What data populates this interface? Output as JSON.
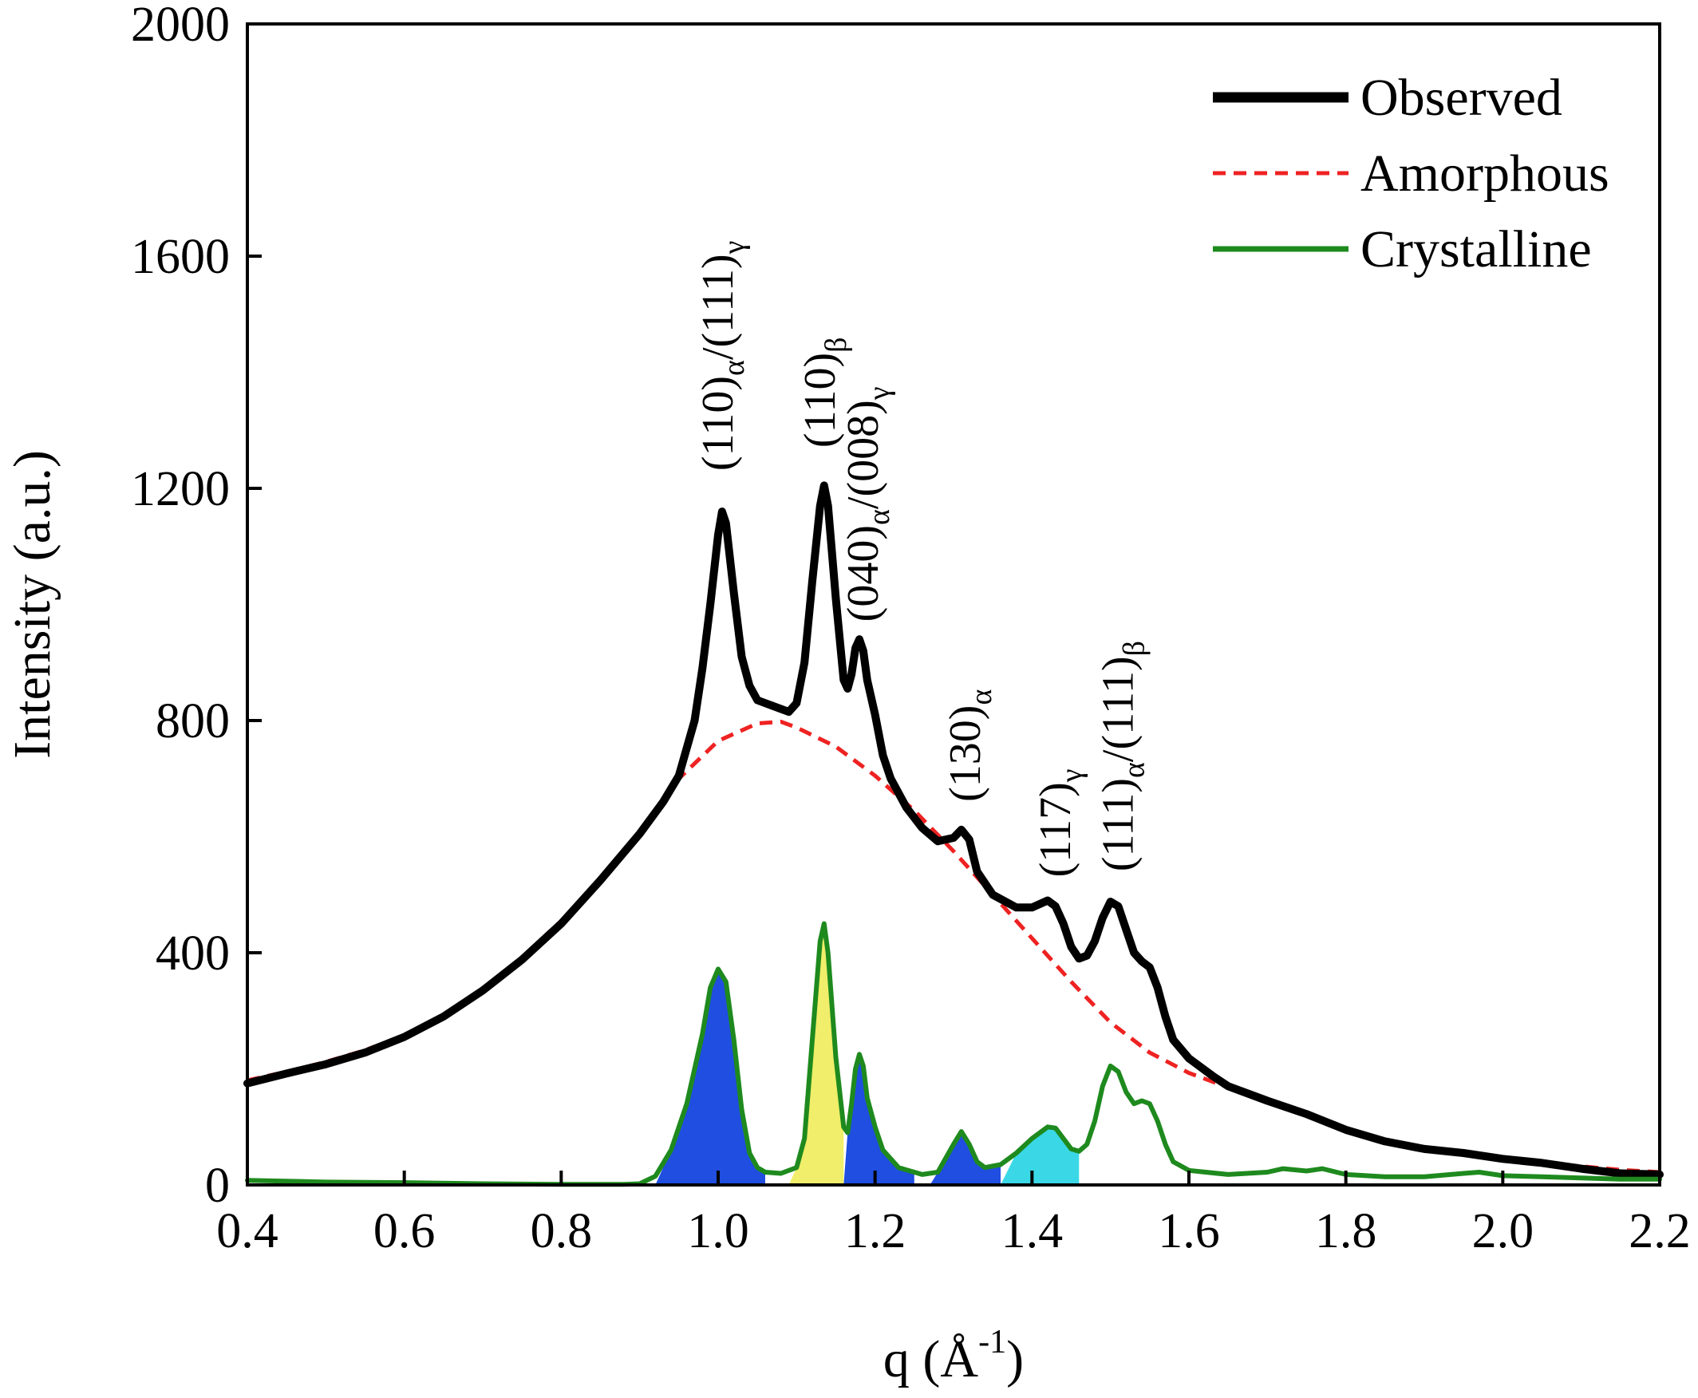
{
  "chart_data": {
    "type": "line",
    "xlabel": "q (Å",
    "xlabel_sup": "-1",
    "xlabel_close": ")",
    "ylabel": "Intensity (a.u.)",
    "xlim": [
      0.4,
      2.2
    ],
    "ylim": [
      0,
      2000
    ],
    "x_ticks": [
      "0.4",
      "0.6",
      "0.8",
      "1.0",
      "1.2",
      "1.4",
      "1.6",
      "1.8",
      "2.0",
      "2.2"
    ],
    "y_ticks": [
      "0",
      "400",
      "800",
      "1200",
      "1600",
      "2000"
    ],
    "grid": false,
    "legend_position": "top-right",
    "series": [
      {
        "name": "Observed",
        "color": "#000000",
        "style": "solid",
        "points": [
          [
            0.4,
            175
          ],
          [
            0.45,
            192
          ],
          [
            0.5,
            208
          ],
          [
            0.55,
            228
          ],
          [
            0.6,
            255
          ],
          [
            0.65,
            290
          ],
          [
            0.7,
            335
          ],
          [
            0.75,
            388
          ],
          [
            0.8,
            450
          ],
          [
            0.85,
            525
          ],
          [
            0.9,
            605
          ],
          [
            0.93,
            660
          ],
          [
            0.95,
            705
          ],
          [
            0.97,
            800
          ],
          [
            0.98,
            890
          ],
          [
            0.99,
            1000
          ],
          [
            1.0,
            1120
          ],
          [
            1.005,
            1160
          ],
          [
            1.01,
            1140
          ],
          [
            1.02,
            1020
          ],
          [
            1.03,
            910
          ],
          [
            1.04,
            860
          ],
          [
            1.05,
            835
          ],
          [
            1.07,
            825
          ],
          [
            1.09,
            815
          ],
          [
            1.1,
            830
          ],
          [
            1.11,
            900
          ],
          [
            1.12,
            1040
          ],
          [
            1.13,
            1170
          ],
          [
            1.135,
            1205
          ],
          [
            1.14,
            1170
          ],
          [
            1.15,
            1010
          ],
          [
            1.16,
            870
          ],
          [
            1.165,
            855
          ],
          [
            1.17,
            880
          ],
          [
            1.175,
            925
          ],
          [
            1.18,
            940
          ],
          [
            1.185,
            920
          ],
          [
            1.19,
            870
          ],
          [
            1.2,
            810
          ],
          [
            1.21,
            740
          ],
          [
            1.22,
            700
          ],
          [
            1.24,
            650
          ],
          [
            1.26,
            615
          ],
          [
            1.28,
            592
          ],
          [
            1.3,
            598
          ],
          [
            1.31,
            612
          ],
          [
            1.32,
            595
          ],
          [
            1.33,
            540
          ],
          [
            1.35,
            500
          ],
          [
            1.38,
            478
          ],
          [
            1.4,
            478
          ],
          [
            1.42,
            490
          ],
          [
            1.43,
            480
          ],
          [
            1.44,
            450
          ],
          [
            1.45,
            410
          ],
          [
            1.46,
            390
          ],
          [
            1.47,
            395
          ],
          [
            1.48,
            420
          ],
          [
            1.49,
            460
          ],
          [
            1.5,
            488
          ],
          [
            1.51,
            480
          ],
          [
            1.52,
            440
          ],
          [
            1.53,
            400
          ],
          [
            1.54,
            385
          ],
          [
            1.55,
            375
          ],
          [
            1.56,
            340
          ],
          [
            1.57,
            290
          ],
          [
            1.58,
            250
          ],
          [
            1.6,
            218
          ],
          [
            1.63,
            188
          ],
          [
            1.65,
            170
          ],
          [
            1.7,
            145
          ],
          [
            1.75,
            122
          ],
          [
            1.8,
            95
          ],
          [
            1.85,
            75
          ],
          [
            1.9,
            62
          ],
          [
            1.95,
            55
          ],
          [
            2.0,
            45
          ],
          [
            2.05,
            38
          ],
          [
            2.1,
            28
          ],
          [
            2.15,
            20
          ],
          [
            2.2,
            18
          ]
        ]
      },
      {
        "name": "Amorphous",
        "color": "#ee2222",
        "style": "dashed",
        "points": [
          [
            0.4,
            180
          ],
          [
            0.45,
            195
          ],
          [
            0.5,
            212
          ],
          [
            0.55,
            232
          ],
          [
            0.6,
            258
          ],
          [
            0.65,
            293
          ],
          [
            0.7,
            338
          ],
          [
            0.75,
            392
          ],
          [
            0.8,
            455
          ],
          [
            0.85,
            528
          ],
          [
            0.9,
            610
          ],
          [
            0.95,
            700
          ],
          [
            1.0,
            765
          ],
          [
            1.05,
            795
          ],
          [
            1.08,
            798
          ],
          [
            1.1,
            788
          ],
          [
            1.15,
            755
          ],
          [
            1.2,
            705
          ],
          [
            1.25,
            645
          ],
          [
            1.3,
            575
          ],
          [
            1.35,
            500
          ],
          [
            1.4,
            425
          ],
          [
            1.45,
            350
          ],
          [
            1.5,
            280
          ],
          [
            1.55,
            228
          ],
          [
            1.6,
            193
          ],
          [
            1.65,
            168
          ],
          [
            1.7,
            143
          ],
          [
            1.75,
            120
          ],
          [
            1.8,
            98
          ],
          [
            1.85,
            78
          ],
          [
            1.9,
            64
          ],
          [
            1.95,
            55
          ],
          [
            2.0,
            47
          ],
          [
            2.05,
            39
          ],
          [
            2.1,
            32
          ],
          [
            2.15,
            26
          ],
          [
            2.2,
            22
          ]
        ]
      },
      {
        "name": "Crystalline",
        "color": "#1e8a1e",
        "style": "solid",
        "points": [
          [
            0.4,
            8
          ],
          [
            0.5,
            5
          ],
          [
            0.6,
            4
          ],
          [
            0.7,
            2
          ],
          [
            0.8,
            1
          ],
          [
            0.88,
            1
          ],
          [
            0.9,
            2
          ],
          [
            0.92,
            15
          ],
          [
            0.94,
            60
          ],
          [
            0.96,
            140
          ],
          [
            0.98,
            260
          ],
          [
            0.99,
            340
          ],
          [
            1.0,
            372
          ],
          [
            1.01,
            350
          ],
          [
            1.02,
            250
          ],
          [
            1.03,
            130
          ],
          [
            1.04,
            55
          ],
          [
            1.05,
            30
          ],
          [
            1.06,
            22
          ],
          [
            1.08,
            20
          ],
          [
            1.1,
            30
          ],
          [
            1.11,
            80
          ],
          [
            1.12,
            250
          ],
          [
            1.13,
            420
          ],
          [
            1.135,
            450
          ],
          [
            1.14,
            400
          ],
          [
            1.15,
            220
          ],
          [
            1.16,
            100
          ],
          [
            1.165,
            90
          ],
          [
            1.17,
            140
          ],
          [
            1.175,
            200
          ],
          [
            1.18,
            225
          ],
          [
            1.185,
            205
          ],
          [
            1.19,
            150
          ],
          [
            1.2,
            100
          ],
          [
            1.21,
            60
          ],
          [
            1.23,
            30
          ],
          [
            1.26,
            18
          ],
          [
            1.28,
            22
          ],
          [
            1.3,
            70
          ],
          [
            1.31,
            92
          ],
          [
            1.32,
            70
          ],
          [
            1.33,
            40
          ],
          [
            1.34,
            30
          ],
          [
            1.36,
            35
          ],
          [
            1.38,
            55
          ],
          [
            1.4,
            80
          ],
          [
            1.42,
            100
          ],
          [
            1.43,
            98
          ],
          [
            1.44,
            80
          ],
          [
            1.45,
            62
          ],
          [
            1.46,
            58
          ],
          [
            1.47,
            70
          ],
          [
            1.48,
            110
          ],
          [
            1.49,
            170
          ],
          [
            1.5,
            205
          ],
          [
            1.51,
            195
          ],
          [
            1.52,
            160
          ],
          [
            1.53,
            140
          ],
          [
            1.54,
            145
          ],
          [
            1.55,
            140
          ],
          [
            1.56,
            110
          ],
          [
            1.57,
            70
          ],
          [
            1.58,
            40
          ],
          [
            1.6,
            25
          ],
          [
            1.65,
            18
          ],
          [
            1.7,
            22
          ],
          [
            1.72,
            28
          ],
          [
            1.75,
            24
          ],
          [
            1.77,
            28
          ],
          [
            1.8,
            18
          ],
          [
            1.85,
            14
          ],
          [
            1.9,
            14
          ],
          [
            1.95,
            20
          ],
          [
            1.97,
            22
          ],
          [
            2.0,
            16
          ],
          [
            2.05,
            14
          ],
          [
            2.1,
            12
          ],
          [
            2.15,
            10
          ],
          [
            2.2,
            10
          ]
        ]
      }
    ],
    "filled_peaks": [
      {
        "color": "#1f4ee0",
        "range": [
          0.92,
          1.06
        ]
      },
      {
        "color": "#f0ee6a",
        "range": [
          1.09,
          1.16
        ]
      },
      {
        "color": "#1f4ee0",
        "range": [
          1.16,
          1.25
        ]
      },
      {
        "color": "#1f4ee0",
        "range": [
          1.27,
          1.36
        ]
      },
      {
        "color": "#3ad8e6",
        "range": [
          1.36,
          1.46
        ]
      }
    ],
    "annotations": [
      {
        "parts": [
          [
            "(110)",
            ""
          ],
          [
            "α",
            "sub"
          ],
          [
            "/(111)",
            ""
          ],
          [
            "γ",
            "sub"
          ]
        ],
        "q": 1.0,
        "i": 1230
      },
      {
        "parts": [
          [
            "(110)",
            ""
          ],
          [
            "β",
            "sub"
          ]
        ],
        "q": 1.13,
        "i": 1270
      },
      {
        "parts": [
          [
            "(040)",
            ""
          ],
          [
            "α",
            "sub"
          ],
          [
            "/(008)",
            ""
          ],
          [
            "γ",
            "sub"
          ]
        ],
        "q": 1.185,
        "i": 970
      },
      {
        "parts": [
          [
            "(130)",
            ""
          ],
          [
            "α",
            "sub"
          ]
        ],
        "q": 1.315,
        "i": 660
      },
      {
        "parts": [
          [
            "(117)",
            ""
          ],
          [
            "γ",
            "sub"
          ]
        ],
        "q": 1.43,
        "i": 530
      },
      {
        "parts": [
          [
            "(111)",
            ""
          ],
          [
            "α",
            "sub"
          ],
          [
            "/(111)",
            ""
          ],
          [
            "β",
            "sub"
          ]
        ],
        "q": 1.51,
        "i": 540
      }
    ]
  }
}
